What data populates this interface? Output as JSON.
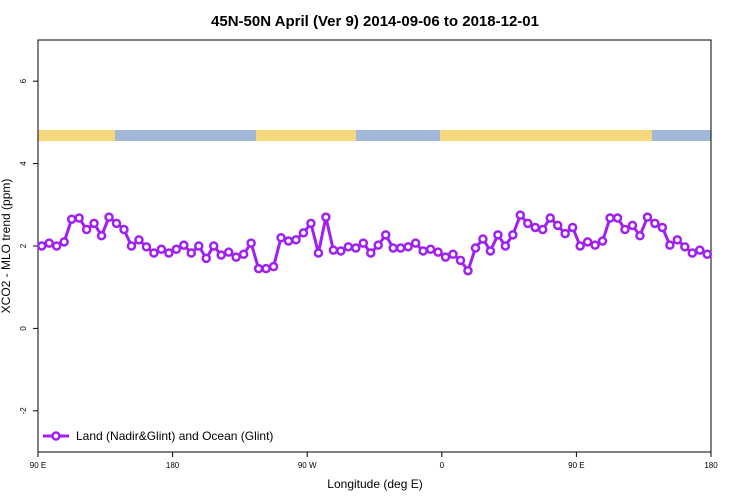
{
  "chart_data": {
    "type": "line",
    "title": "45N-50N April (Ver 9)   2014-09-06 to 2018-12-01",
    "x_label": "Longitude (deg E)",
    "y_label": "XCO2 - MLO trend (ppm)",
    "xlim": [
      90,
      540
    ],
    "ylim": [
      -3,
      7
    ],
    "xticks": [
      {
        "value": 90,
        "label": "90 E"
      },
      180,
      {
        "value": 270,
        "label": "90 W"
      },
      {
        "value": 360,
        "label": "0"
      },
      {
        "value": 450,
        "label": "90 E"
      },
      {
        "value": 540,
        "label": "180"
      }
    ],
    "yticks": [
      -2,
      0,
      2,
      4,
      6
    ],
    "legend_position": "bottom-left",
    "x": [
      92.5,
      97.5,
      102.5,
      107.5,
      112.5,
      117.5,
      122.5,
      127.5,
      132.5,
      137.5,
      142.5,
      147.5,
      152.5,
      157.5,
      162.5,
      167.5,
      172.5,
      177.5,
      182.5,
      187.5,
      192.5,
      197.5,
      202.5,
      207.5,
      212.5,
      217.5,
      222.5,
      227.5,
      232.5,
      237.5,
      242.5,
      247.5,
      252.5,
      257.5,
      262.5,
      267.5,
      272.5,
      277.5,
      282.5,
      287.5,
      292.5,
      297.5,
      302.5,
      307.5,
      312.5,
      317.5,
      322.5,
      327.5,
      332.5,
      337.5,
      342.5,
      347.5,
      352.5,
      357.5,
      362.5,
      367.5,
      372.5,
      377.5,
      382.5,
      387.5,
      392.5,
      397.5,
      402.5,
      407.5,
      412.5,
      417.5,
      422.5,
      427.5,
      432.5,
      437.5,
      442.5,
      447.5,
      452.5,
      457.5,
      462.5,
      467.5,
      472.5,
      477.5,
      482.5,
      487.5,
      492.5,
      497.5,
      502.5,
      507.5,
      512.5,
      517.5,
      522.5,
      527.5,
      532.5,
      537.5
    ],
    "series": [
      {
        "name": "Land (Nadir&Glint) and Ocean (Glint)",
        "color": "#a020f0",
        "values": [
          2.0,
          2.07,
          2.0,
          2.1,
          2.65,
          2.68,
          2.4,
          2.55,
          2.25,
          2.7,
          2.55,
          2.4,
          2.0,
          2.15,
          1.98,
          1.83,
          1.92,
          1.83,
          1.92,
          2.02,
          1.83,
          2.0,
          1.7,
          2.0,
          1.78,
          1.85,
          1.73,
          1.8,
          2.07,
          1.45,
          1.45,
          1.5,
          2.2,
          2.12,
          2.15,
          2.32,
          2.55,
          1.83,
          2.7,
          1.9,
          1.88,
          1.98,
          1.95,
          2.07,
          1.83,
          2.02,
          2.27,
          1.95,
          1.95,
          1.98,
          2.07,
          1.88,
          1.92,
          1.85,
          1.73,
          1.8,
          1.65,
          1.4,
          1.95,
          2.17,
          1.88,
          2.27,
          2.0,
          2.27,
          2.75,
          2.55,
          2.45,
          2.4,
          2.68,
          2.5,
          2.3,
          2.45,
          2.0,
          2.1,
          2.02,
          2.12,
          2.68,
          2.68,
          2.4,
          2.5,
          2.25,
          2.7,
          2.55,
          2.45,
          2.02,
          2.15,
          1.98,
          1.83,
          1.9,
          1.8
        ]
      }
    ]
  }
}
